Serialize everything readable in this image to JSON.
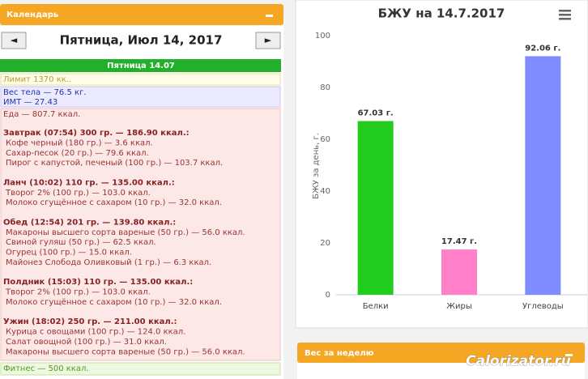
{
  "calendar": {
    "header": "Календарь",
    "prev": "◄",
    "date_title": "Пятница, Июл 14, 2017",
    "next": "►",
    "day_tab": "Пятница 14.07",
    "limit": "Лимит 1370 кк..",
    "weight": "Вес тела — 76.5 кг.",
    "bmi": "ИМТ — 27.43",
    "food": "Еда — 807.7 ккал.",
    "meals": [
      {
        "title": "Завтрак (07:54) 300 гр. — 186.90 ккал.:",
        "items": [
          "Кофе черный (180 гр.) — 3.6 ккал.",
          "Сахар-песок (20 гр.) — 79.6 ккал.",
          "Пирог с капустой, печеный (100 гр.) — 103.7 ккал."
        ]
      },
      {
        "title": "Ланч (10:02) 110 гр. — 135.00 ккал.:",
        "items": [
          "Творог 2% (100 гр.) — 103.0 ккал.",
          "Молоко сгущённое с сахаром (10 гр.) — 32.0 ккал."
        ]
      },
      {
        "title": "Обед (12:54) 201 гр. — 139.80 ккал.:",
        "items": [
          "Макароны высшего сорта вареные (50 гр.) — 56.0 ккал.",
          "Свиной гуляш (50 гр.) — 62.5 ккал.",
          "Огурец (100 гр.) — 15.0 ккал.",
          "Майонез Слобода Оливковый (1 гр.) — 6.3 ккал."
        ]
      },
      {
        "title": "Полдник (15:03) 110 гр. — 135.00 ккал.:",
        "items": [
          "Творог 2% (100 гр.) — 103.0 ккал.",
          "Молоко сгущённое с сахаром (10 гр.) — 32.0 ккал."
        ]
      },
      {
        "title": "Ужин (18:02) 250 гр. — 211.00 ккал.:",
        "items": [
          "Курица с овощами (100 гр.) — 124.0 ккал.",
          "Салат овощной (100 гр.) — 31.0 ккал.",
          "Макароны высшего сорта вареные (50 гр.) — 56.0 ккал."
        ]
      }
    ],
    "fitness": "Фитнес — 500 ккал."
  },
  "chart_data": {
    "type": "bar",
    "title": "БЖУ на 14.7.2017",
    "ylabel": "БЖУ за день, г.",
    "categories": [
      "Белки",
      "Жиры",
      "Углеводы"
    ],
    "values": [
      67.03,
      17.47,
      92.06
    ],
    "value_labels": [
      "67.03 г.",
      "17.47 г.",
      "92.06 г."
    ],
    "colors": [
      "#22cc1f",
      "#ff7fc9",
      "#7f8cff"
    ],
    "ylim": [
      0,
      100
    ],
    "yticks": [
      0,
      20,
      40,
      60,
      80,
      100
    ],
    "grid": false
  },
  "week_panel": "Вес за неделю",
  "watermark": "Calorizator.ru"
}
